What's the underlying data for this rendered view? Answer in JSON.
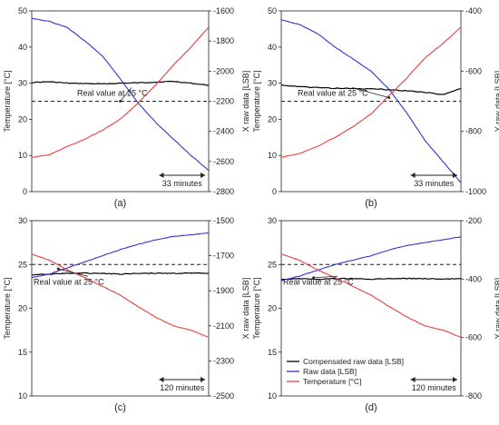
{
  "chart_data": [
    {
      "type": "line",
      "panel_label": "(a)",
      "left_axis": {
        "label": "Temperature [°C]",
        "ylim": [
          0,
          50
        ],
        "ticks": [
          0,
          10,
          20,
          30,
          40,
          50
        ]
      },
      "right_axis": {
        "label": "X raw data [LSB]",
        "ylim": [
          -2800,
          -1600
        ],
        "ticks": [
          -2800,
          -2600,
          -2400,
          -2200,
          -2000,
          -1800,
          -1600
        ]
      },
      "x_range": [
        0,
        100
      ],
      "reference_line": {
        "axis": "left",
        "value": 25,
        "style": "dashed"
      },
      "annotation": "Real value at 25 °C",
      "annotation_target": [
        50,
        25
      ],
      "scale_bar": {
        "label": "33 minutes",
        "from": 72,
        "to": 98
      },
      "legend": null,
      "series": [
        {
          "color": "#000000",
          "axis": "left",
          "x": [
            0,
            10,
            20,
            30,
            40,
            50,
            60,
            70,
            80,
            90,
            100
          ],
          "values": [
            30.2,
            30.4,
            30.0,
            29.9,
            29.8,
            30.0,
            30.1,
            30.3,
            30.5,
            30.0,
            29.4
          ]
        },
        {
          "color": "#3333cc",
          "axis": "right",
          "x": [
            0,
            10,
            20,
            30,
            40,
            50,
            60,
            70,
            80,
            90,
            100
          ],
          "values": [
            -1650,
            -1670,
            -1710,
            -1800,
            -1900,
            -2050,
            -2210,
            -2340,
            -2450,
            -2560,
            -2660
          ]
        },
        {
          "color": "#e8403a",
          "axis": "left",
          "x": [
            0,
            10,
            20,
            30,
            40,
            50,
            60,
            70,
            80,
            90,
            100
          ],
          "values": [
            9.5,
            10.2,
            12.5,
            14.5,
            17.0,
            20.0,
            24.5,
            29.5,
            35.0,
            40.0,
            45.5
          ]
        }
      ]
    },
    {
      "type": "line",
      "panel_label": "(b)",
      "left_axis": {
        "label": "Temperature [°C]",
        "ylim": [
          0,
          50
        ],
        "ticks": [
          0,
          10,
          20,
          30,
          40,
          50
        ]
      },
      "right_axis": {
        "label": "Y raw data [LSB]",
        "ylim": [
          -1000,
          -400
        ],
        "ticks": [
          -1000,
          -800,
          -600,
          -400
        ]
      },
      "x_range": [
        0,
        100
      ],
      "reference_line": {
        "axis": "left",
        "value": 25,
        "style": "dashed"
      },
      "annotation": "Real value at 25 °C",
      "annotation_target": [
        60,
        26
      ],
      "scale_bar": {
        "label": "33 minutes",
        "from": 72,
        "to": 98
      },
      "legend": null,
      "series": [
        {
          "color": "#000000",
          "axis": "left",
          "x": [
            0,
            10,
            20,
            30,
            40,
            50,
            60,
            70,
            80,
            90,
            100
          ],
          "values": [
            29.5,
            29.0,
            28.8,
            28.6,
            28.5,
            28.4,
            28.2,
            27.9,
            27.5,
            26.8,
            28.5
          ]
        },
        {
          "color": "#3333cc",
          "axis": "right",
          "x": [
            0,
            10,
            20,
            30,
            40,
            50,
            60,
            70,
            80,
            90,
            100
          ],
          "values": [
            -430,
            -445,
            -475,
            -520,
            -560,
            -600,
            -660,
            -740,
            -830,
            -900,
            -970
          ]
        },
        {
          "color": "#e8403a",
          "axis": "left",
          "x": [
            0,
            10,
            20,
            30,
            40,
            50,
            60,
            70,
            80,
            90,
            100
          ],
          "values": [
            9.5,
            10.5,
            12.5,
            15.0,
            18.0,
            21.5,
            26.5,
            31.5,
            37.0,
            41.0,
            45.5
          ]
        }
      ]
    },
    {
      "type": "line",
      "panel_label": "(c)",
      "left_axis": {
        "label": "Temperature [°C]",
        "ylim": [
          10,
          30
        ],
        "ticks": [
          10,
          15,
          20,
          25,
          30
        ]
      },
      "right_axis": {
        "label": "X raw data [LSB]",
        "ylim": [
          -2500,
          -1500
        ],
        "ticks": [
          -2500,
          -2300,
          -2100,
          -1900,
          -1700,
          -1500
        ]
      },
      "x_range": [
        0,
        100
      ],
      "reference_line": {
        "axis": "left",
        "value": 25,
        "style": "dashed"
      },
      "annotation": "Real value at 25 °C",
      "annotation_target": [
        15,
        24.5
      ],
      "scale_bar": {
        "label": "120 minutes",
        "from": 72,
        "to": 98
      },
      "legend": null,
      "series": [
        {
          "color": "#000000",
          "axis": "left",
          "x": [
            0,
            10,
            20,
            30,
            40,
            50,
            60,
            70,
            80,
            90,
            100
          ],
          "values": [
            23.8,
            23.9,
            24.0,
            24.0,
            24.0,
            23.9,
            24.0,
            24.0,
            24.0,
            24.0,
            24.0
          ]
        },
        {
          "color": "#3333cc",
          "axis": "right",
          "x": [
            0,
            10,
            20,
            30,
            40,
            50,
            60,
            70,
            80,
            90,
            100
          ],
          "values": [
            -1825,
            -1805,
            -1770,
            -1735,
            -1700,
            -1665,
            -1635,
            -1610,
            -1590,
            -1580,
            -1570
          ]
        },
        {
          "color": "#e8403a",
          "axis": "left",
          "x": [
            0,
            10,
            20,
            30,
            40,
            50,
            60,
            70,
            80,
            90,
            100
          ],
          "values": [
            26.2,
            25.5,
            24.4,
            23.5,
            22.5,
            21.5,
            20.2,
            19.0,
            18.0,
            17.5,
            16.7
          ]
        }
      ]
    },
    {
      "type": "line",
      "panel_label": "(d)",
      "left_axis": {
        "label": "Temperature [°C]",
        "ylim": [
          10,
          30
        ],
        "ticks": [
          10,
          15,
          20,
          25,
          30
        ]
      },
      "right_axis": {
        "label": "Y raw data [LSB]",
        "ylim": [
          -800,
          -200
        ],
        "ticks": [
          -800,
          -600,
          -400,
          -200
        ]
      },
      "x_range": [
        0,
        100
      ],
      "reference_line": {
        "axis": "left",
        "value": 25,
        "style": "dashed"
      },
      "annotation": "Real value at 25 °C",
      "annotation_target": [
        18,
        23.5
      ],
      "scale_bar": {
        "label": "120 minutes",
        "from": 72,
        "to": 98
      },
      "legend": {
        "placement": "bottom-left",
        "entries": [
          {
            "label": "Compensated raw data [LSB]",
            "color": "#000000"
          },
          {
            "label": "Raw data [LSB]",
            "color": "#3333cc"
          },
          {
            "label": "Temperature [°C]",
            "color": "#e8403a"
          }
        ]
      },
      "series": [
        {
          "color": "#000000",
          "axis": "left",
          "x": [
            0,
            10,
            20,
            30,
            40,
            50,
            60,
            70,
            80,
            90,
            100
          ],
          "values": [
            23.3,
            23.4,
            23.3,
            23.4,
            23.4,
            23.3,
            23.4,
            23.4,
            23.4,
            23.3,
            23.4
          ]
        },
        {
          "color": "#3333cc",
          "axis": "right",
          "x": [
            0,
            10,
            20,
            30,
            40,
            50,
            60,
            70,
            80,
            90,
            100
          ],
          "values": [
            -405,
            -390,
            -370,
            -350,
            -335,
            -320,
            -300,
            -285,
            -275,
            -265,
            -255
          ]
        },
        {
          "color": "#e8403a",
          "axis": "left",
          "x": [
            0,
            10,
            20,
            30,
            40,
            50,
            60,
            70,
            80,
            90,
            100
          ],
          "values": [
            26.2,
            25.5,
            24.4,
            23.5,
            22.5,
            21.5,
            20.2,
            19.0,
            18.0,
            17.5,
            16.7
          ]
        }
      ]
    }
  ]
}
